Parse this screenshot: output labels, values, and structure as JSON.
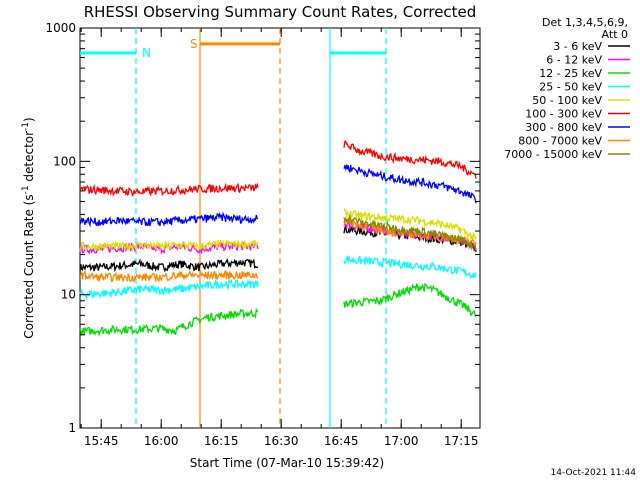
{
  "chart_data": {
    "type": "line",
    "title": "RHESSI Observing Summary Count Rates, Corrected",
    "xlabel": "Start Time (07-Mar-10 15:39:42)",
    "ylabel": "Corrected Count Rate (s⁻¹ detector⁻¹)",
    "ylabel_parts": [
      "Corrected Count Rate (s",
      "-1",
      " detector",
      "-1",
      ")"
    ],
    "yscale": "log",
    "ylim": [
      1,
      1000
    ],
    "y_ticks": [
      {
        "value": 1,
        "label": "1"
      },
      {
        "value": 10,
        "label": "10"
      },
      {
        "value": 100,
        "label": "100"
      },
      {
        "value": 1000,
        "label": "1000"
      }
    ],
    "x_range_minutes": [
      0,
      100
    ],
    "x_ticks": [
      {
        "minute": 5.3,
        "label": "15:45"
      },
      {
        "minute": 20.3,
        "label": "16:00"
      },
      {
        "minute": 35.3,
        "label": "16:15"
      },
      {
        "minute": 50.3,
        "label": "16:30"
      },
      {
        "minute": 65.3,
        "label": "16:45"
      },
      {
        "minute": 80.3,
        "label": "17:00"
      },
      {
        "minute": 95.3,
        "label": "17:15"
      }
    ],
    "legend_header": [
      "Det 1,3,4,5,6,9,",
      "Att 0"
    ],
    "series": [
      {
        "name": "3 - 6 keV",
        "color": "#000000",
        "segments": [
          {
            "x": [
              0,
              5,
              10,
              15,
              20,
              25,
              30,
              35,
              40,
              44.5
            ],
            "y": [
              16,
              16,
              16.5,
              17,
              16,
              17,
              16,
              17,
              17.5,
              17
            ]
          },
          {
            "x": [
              66,
              70,
              75,
              80,
              85,
              90,
              95,
              99
            ],
            "y": [
              31,
              30,
              29,
              28,
              27,
              26,
              25,
              22
            ]
          }
        ]
      },
      {
        "name": "6 - 12 keV",
        "color": "#ff00ff",
        "segments": [
          {
            "x": [
              0,
              5,
              10,
              15,
              20,
              25,
              30,
              35,
              40,
              44.5
            ],
            "y": [
              22,
              22,
              22.5,
              23,
              22,
              23,
              22,
              23,
              23,
              23
            ]
          },
          {
            "x": [
              66,
              70,
              75,
              80,
              85,
              90,
              95,
              99
            ],
            "y": [
              34,
              32,
              31,
              29,
              28,
              27,
              25,
              23
            ]
          }
        ]
      },
      {
        "name": "12 - 25 keV",
        "color": "#00dd00",
        "segments": [
          {
            "x": [
              0,
              5,
              10,
              15,
              20,
              24,
              28,
              32,
              36,
              40,
              44.5
            ],
            "y": [
              5.3,
              5.4,
              5.5,
              5.5,
              5.6,
              5.4,
              6.2,
              6.8,
              7.0,
              7.2,
              7.3
            ]
          },
          {
            "x": [
              66,
              70,
              75,
              78,
              82,
              85,
              88,
              92,
              96,
              99
            ],
            "y": [
              8.5,
              8.8,
              9.0,
              9.8,
              10.8,
              11.5,
              11.0,
              9.5,
              8.2,
              7.0
            ]
          }
        ]
      },
      {
        "name": "25 - 50 keV",
        "color": "#00ffff",
        "segments": [
          {
            "x": [
              0,
              5,
              10,
              15,
              20,
              25,
              30,
              35,
              40,
              44.5
            ],
            "y": [
              10,
              10.2,
              10.5,
              11,
              10.8,
              11,
              11.5,
              12,
              12,
              12
            ]
          },
          {
            "x": [
              66,
              70,
              75,
              80,
              85,
              90,
              95,
              99
            ],
            "y": [
              18.5,
              18,
              17.5,
              17,
              16.5,
              16,
              15,
              14
            ]
          }
        ]
      },
      {
        "name": "50 - 100 keV",
        "color": "#dddd00",
        "segments": [
          {
            "x": [
              0,
              5,
              10,
              15,
              20,
              25,
              30,
              35,
              40,
              44.5
            ],
            "y": [
              23,
              23,
              23,
              23.5,
              23,
              23.5,
              23,
              24,
              24,
              24
            ]
          },
          {
            "x": [
              66,
              70,
              75,
              80,
              85,
              90,
              95,
              99
            ],
            "y": [
              41,
              39,
              38,
              37,
              36,
              34,
              31,
              26
            ]
          }
        ]
      },
      {
        "name": "100 - 300 keV",
        "color": "#ff0000",
        "segments": [
          {
            "x": [
              0,
              5,
              10,
              15,
              20,
              25,
              30,
              35,
              40,
              44.5
            ],
            "y": [
              62,
              61,
              60,
              59,
              60,
              61,
              62,
              63,
              63,
              63
            ]
          },
          {
            "x": [
              66,
              70,
              75,
              80,
              85,
              90,
              95,
              99
            ],
            "y": [
              135,
              120,
              110,
              105,
              103,
              100,
              92,
              78
            ]
          }
        ]
      },
      {
        "name": "300 - 800 keV",
        "color": "#0000ff",
        "segments": [
          {
            "x": [
              0,
              5,
              10,
              15,
              20,
              25,
              30,
              35,
              40,
              44.5
            ],
            "y": [
              36,
              35,
              36,
              35,
              35,
              36,
              37,
              38,
              37,
              37
            ]
          },
          {
            "x": [
              66,
              70,
              75,
              80,
              85,
              90,
              95,
              99
            ],
            "y": [
              92,
              85,
              78,
              73,
              70,
              66,
              60,
              52
            ]
          }
        ]
      },
      {
        "name": "800 - 7000 keV",
        "color": "#ff8800",
        "segments": [
          {
            "x": [
              0,
              5,
              10,
              15,
              20,
              25,
              30,
              35,
              40,
              44.5
            ],
            "y": [
              14,
              13.5,
              13.5,
              13.5,
              13.5,
              14,
              14,
              14,
              14,
              14
            ]
          },
          {
            "x": [
              66,
              70,
              75,
              80,
              85,
              90,
              95,
              99
            ],
            "y": [
              36,
              33,
              31,
              29,
              28,
              27,
              26,
              24
            ]
          }
        ]
      },
      {
        "name": "7000 - 15000 keV",
        "color": "#888800",
        "segments": [
          {
            "x": [
              66,
              70,
              75,
              80,
              85,
              90,
              95,
              99
            ],
            "y": [
              38,
              35,
              33,
              31,
              30,
              28,
              26,
              23
            ]
          }
        ]
      }
    ],
    "annotations": [
      {
        "kind": "hbar",
        "label": "N",
        "color": "#00ffff",
        "x_start": 0,
        "x_end": 14,
        "y": 650
      },
      {
        "kind": "hbar",
        "label": "",
        "color": "#00ffff",
        "x_start": 62.5,
        "x_end": 76.5,
        "y": 650
      },
      {
        "kind": "hbar",
        "label": "S",
        "color": "#ff8800",
        "x_start": 30,
        "x_end": 50,
        "y": 760
      },
      {
        "kind": "vline",
        "color": "#00ffff",
        "style": "dashed",
        "x": 14
      },
      {
        "kind": "vline",
        "color": "#00ffff",
        "style": "solid",
        "x": 62.5
      },
      {
        "kind": "vline",
        "color": "#00ffff",
        "style": "dashed",
        "x": 76.5
      },
      {
        "kind": "vline",
        "color": "#ff8800",
        "style": "solid",
        "x": 30
      },
      {
        "kind": "vline",
        "color": "#ff8800",
        "style": "dashed",
        "x": 50
      }
    ]
  },
  "footer": {
    "timestamp": "14-Oct-2021 11:44"
  }
}
